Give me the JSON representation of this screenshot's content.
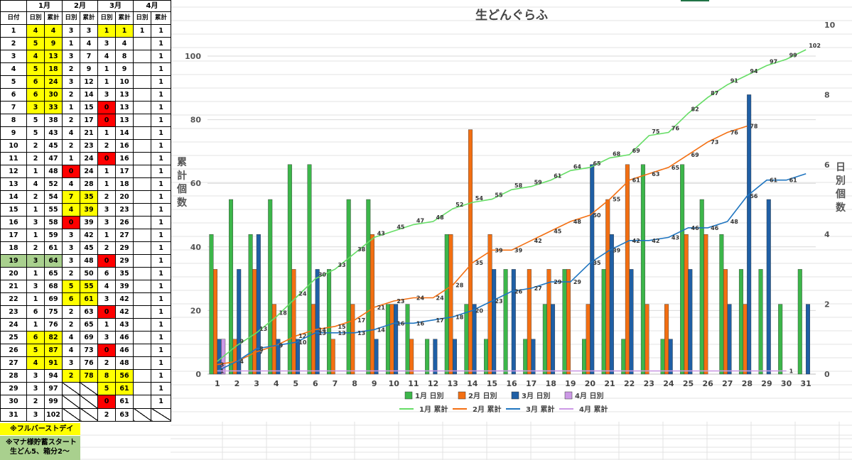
{
  "sheet": {
    "month_headers": [
      "1月",
      "2月",
      "3月",
      "4月"
    ],
    "date_header": "日付",
    "sub_headers": [
      "日別",
      "累計"
    ],
    "rows": [
      [
        "1",
        "4",
        "4",
        "3",
        "3",
        "1",
        "1",
        "1",
        "1"
      ],
      [
        "2",
        "5",
        "9",
        "1",
        "4",
        "3",
        "4",
        "",
        "1"
      ],
      [
        "3",
        "4",
        "13",
        "3",
        "7",
        "4",
        "8",
        "",
        "1"
      ],
      [
        "4",
        "5",
        "18",
        "2",
        "9",
        "1",
        "9",
        "",
        "1"
      ],
      [
        "5",
        "6",
        "24",
        "3",
        "12",
        "1",
        "10",
        "",
        "1"
      ],
      [
        "6",
        "6",
        "30",
        "2",
        "14",
        "3",
        "13",
        "",
        "1"
      ],
      [
        "7",
        "3",
        "33",
        "1",
        "15",
        "0",
        "13",
        "",
        "1"
      ],
      [
        "8",
        "5",
        "38",
        "2",
        "17",
        "0",
        "13",
        "",
        "1"
      ],
      [
        "9",
        "5",
        "43",
        "4",
        "21",
        "1",
        "14",
        "",
        "1"
      ],
      [
        "10",
        "2",
        "45",
        "2",
        "23",
        "2",
        "16",
        "",
        "1"
      ],
      [
        "11",
        "2",
        "47",
        "1",
        "24",
        "0",
        "16",
        "",
        "1"
      ],
      [
        "12",
        "1",
        "48",
        "0",
        "24",
        "1",
        "17",
        "",
        "1"
      ],
      [
        "13",
        "4",
        "52",
        "4",
        "28",
        "1",
        "18",
        "",
        "1"
      ],
      [
        "14",
        "2",
        "54",
        "7",
        "35",
        "2",
        "20",
        "",
        "1"
      ],
      [
        "15",
        "1",
        "55",
        "4",
        "39",
        "3",
        "23",
        "",
        "1"
      ],
      [
        "16",
        "3",
        "58",
        "0",
        "39",
        "3",
        "26",
        "",
        "1"
      ],
      [
        "17",
        "1",
        "59",
        "3",
        "42",
        "1",
        "27",
        "",
        "1"
      ],
      [
        "18",
        "2",
        "61",
        "3",
        "45",
        "2",
        "29",
        "",
        "1"
      ],
      [
        "19",
        "3",
        "64",
        "3",
        "48",
        "0",
        "29",
        "",
        "1"
      ],
      [
        "20",
        "1",
        "65",
        "2",
        "50",
        "6",
        "35",
        "",
        "1"
      ],
      [
        "21",
        "3",
        "68",
        "5",
        "55",
        "4",
        "39",
        "",
        "1"
      ],
      [
        "22",
        "1",
        "69",
        "6",
        "61",
        "3",
        "42",
        "",
        "1"
      ],
      [
        "23",
        "6",
        "75",
        "2",
        "63",
        "0",
        "42",
        "",
        "1"
      ],
      [
        "24",
        "1",
        "76",
        "2",
        "65",
        "1",
        "43",
        "",
        "1"
      ],
      [
        "25",
        "6",
        "82",
        "4",
        "69",
        "3",
        "46",
        "",
        "1"
      ],
      [
        "26",
        "5",
        "87",
        "4",
        "73",
        "0",
        "46",
        "",
        "1"
      ],
      [
        "27",
        "4",
        "91",
        "3",
        "76",
        "2",
        "48",
        "",
        "1"
      ],
      [
        "28",
        "3",
        "94",
        "2",
        "78",
        "8",
        "56",
        "",
        "1"
      ],
      [
        "29",
        "3",
        "97",
        "",
        "",
        "5",
        "61",
        "",
        "1"
      ],
      [
        "30",
        "2",
        "99",
        "",
        "",
        "0",
        "61",
        "",
        "1"
      ],
      [
        "31",
        "3",
        "102",
        "",
        "",
        "2",
        "63",
        "",
        ""
      ]
    ],
    "notes": [
      "※フルバーストデイ",
      "※マナ様貯蓄スタート",
      "生どん5、箱分2～"
    ],
    "colors": {
      "highlight_yellow": "#ffff00",
      "highlight_red": "#ff0000",
      "highlight_green": "#a9d08e"
    }
  },
  "chart_data": {
    "type": "bar",
    "title": "生どんぐらふ",
    "ylabel": "累計個数",
    "y2label": "日別個数",
    "categories": [
      "1",
      "2",
      "3",
      "4",
      "5",
      "6",
      "7",
      "8",
      "9",
      "10",
      "11",
      "12",
      "13",
      "14",
      "15",
      "16",
      "17",
      "18",
      "19",
      "20",
      "21",
      "22",
      "23",
      "24",
      "25",
      "26",
      "27",
      "28",
      "29",
      "30",
      "31"
    ],
    "ylim": [
      0,
      110
    ],
    "yticks": [
      0,
      20,
      40,
      60,
      80,
      100
    ],
    "y2lim": [
      0,
      10
    ],
    "y2ticks": [
      0,
      2,
      4,
      6,
      8,
      10
    ],
    "bar_series": [
      {
        "name": "1月 日別",
        "color": "#3cb64a",
        "values": [
          4,
          5,
          4,
          5,
          6,
          6,
          3,
          5,
          5,
          2,
          2,
          1,
          4,
          2,
          1,
          3,
          1,
          2,
          3,
          1,
          3,
          1,
          6,
          1,
          6,
          5,
          4,
          3,
          3,
          2,
          3
        ]
      },
      {
        "name": "2月 日別",
        "color": "#f36f12",
        "values": [
          3,
          1,
          3,
          2,
          3,
          2,
          1,
          2,
          4,
          2,
          1,
          0,
          4,
          7,
          4,
          0,
          3,
          3,
          3,
          2,
          5,
          6,
          2,
          2,
          4,
          4,
          3,
          2,
          null,
          null,
          null
        ]
      },
      {
        "name": "3月 日別",
        "color": "#1f5fa5",
        "values": [
          1,
          3,
          4,
          1,
          1,
          3,
          0,
          0,
          1,
          2,
          0,
          1,
          1,
          2,
          3,
          3,
          1,
          2,
          0,
          6,
          4,
          3,
          0,
          1,
          3,
          0,
          2,
          8,
          5,
          0,
          2
        ]
      },
      {
        "name": "4月 日別",
        "color": "#cc99e6",
        "values": [
          1,
          null,
          null,
          null,
          null,
          null,
          null,
          null,
          null,
          null,
          null,
          null,
          null,
          null,
          null,
          null,
          null,
          null,
          null,
          null,
          null,
          null,
          null,
          null,
          null,
          null,
          null,
          null,
          null,
          null,
          null
        ]
      }
    ],
    "line_series": [
      {
        "name": "1月 累計",
        "color": "#66dd66",
        "values": [
          4,
          9,
          13,
          18,
          24,
          30,
          33,
          38,
          43,
          45,
          47,
          48,
          52,
          54,
          55,
          58,
          59,
          61,
          64,
          65,
          68,
          69,
          75,
          76,
          82,
          87,
          91,
          94,
          97,
          99,
          102
        ],
        "labels": [
          "",
          "9",
          "13",
          "18",
          "24",
          "30",
          "33",
          "38",
          "43",
          "45",
          "47",
          "48",
          "52",
          "54",
          "55",
          "58",
          "59",
          "61",
          "64",
          "65",
          "68",
          "69",
          "75",
          "76",
          "82",
          "87",
          "91",
          "94",
          "97",
          "99",
          "102"
        ]
      },
      {
        "name": "2月 累計",
        "color": "#f36f12",
        "values": [
          3,
          4,
          7,
          9,
          12,
          14,
          15,
          17,
          21,
          23,
          24,
          24,
          28,
          35,
          39,
          39,
          42,
          45,
          48,
          50,
          55,
          61,
          63,
          65,
          69,
          73,
          76,
          78,
          null,
          null,
          null
        ],
        "labels": [
          "3",
          "4",
          "7",
          "9",
          "12",
          "14",
          "15",
          "17",
          "21",
          "23",
          "24",
          "24",
          "28",
          "35",
          "39",
          "39",
          "42",
          "45",
          "48",
          "50",
          "55",
          "61",
          "63",
          "65",
          "69",
          "73",
          "76",
          "78",
          "",
          "",
          ""
        ]
      },
      {
        "name": "3月 累計",
        "color": "#1f75c0",
        "values": [
          1,
          4,
          8,
          9,
          10,
          13,
          13,
          13,
          14,
          16,
          16,
          17,
          18,
          20,
          23,
          26,
          27,
          29,
          29,
          35,
          39,
          42,
          42,
          43,
          46,
          46,
          48,
          56,
          61,
          61,
          63
        ],
        "labels": [
          "1",
          "",
          "8",
          "9",
          "10",
          "13",
          "13",
          "13",
          "14",
          "16",
          "16",
          "17",
          "18",
          "20",
          "23",
          "26",
          "27",
          "29",
          "29",
          "35",
          "39",
          "42",
          "42",
          "43",
          "46",
          "46",
          "48",
          "56",
          "61",
          "61",
          ""
        ]
      },
      {
        "name": "4月 累計",
        "color": "#cc99e6",
        "values": [
          1,
          1,
          1,
          1,
          1,
          1,
          1,
          1,
          1,
          1,
          1,
          1,
          1,
          1,
          1,
          1,
          1,
          1,
          1,
          1,
          1,
          1,
          1,
          1,
          1,
          1,
          1,
          1,
          1,
          1,
          null
        ],
        "labels": [
          "",
          "",
          "",
          "",
          "",
          "",
          "",
          "",
          "",
          "",
          "",
          "",
          "",
          "",
          "",
          "",
          "",
          "",
          "",
          "",
          "",
          "",
          "",
          "",
          "",
          "",
          "",
          "",
          "",
          "1",
          ""
        ]
      }
    ],
    "legend": [
      "1月 日別",
      "2月 日別",
      "3月 日別",
      "4月 日別",
      "1月 累計",
      "2月 累計",
      "3月 累計",
      "4月 累計"
    ]
  }
}
